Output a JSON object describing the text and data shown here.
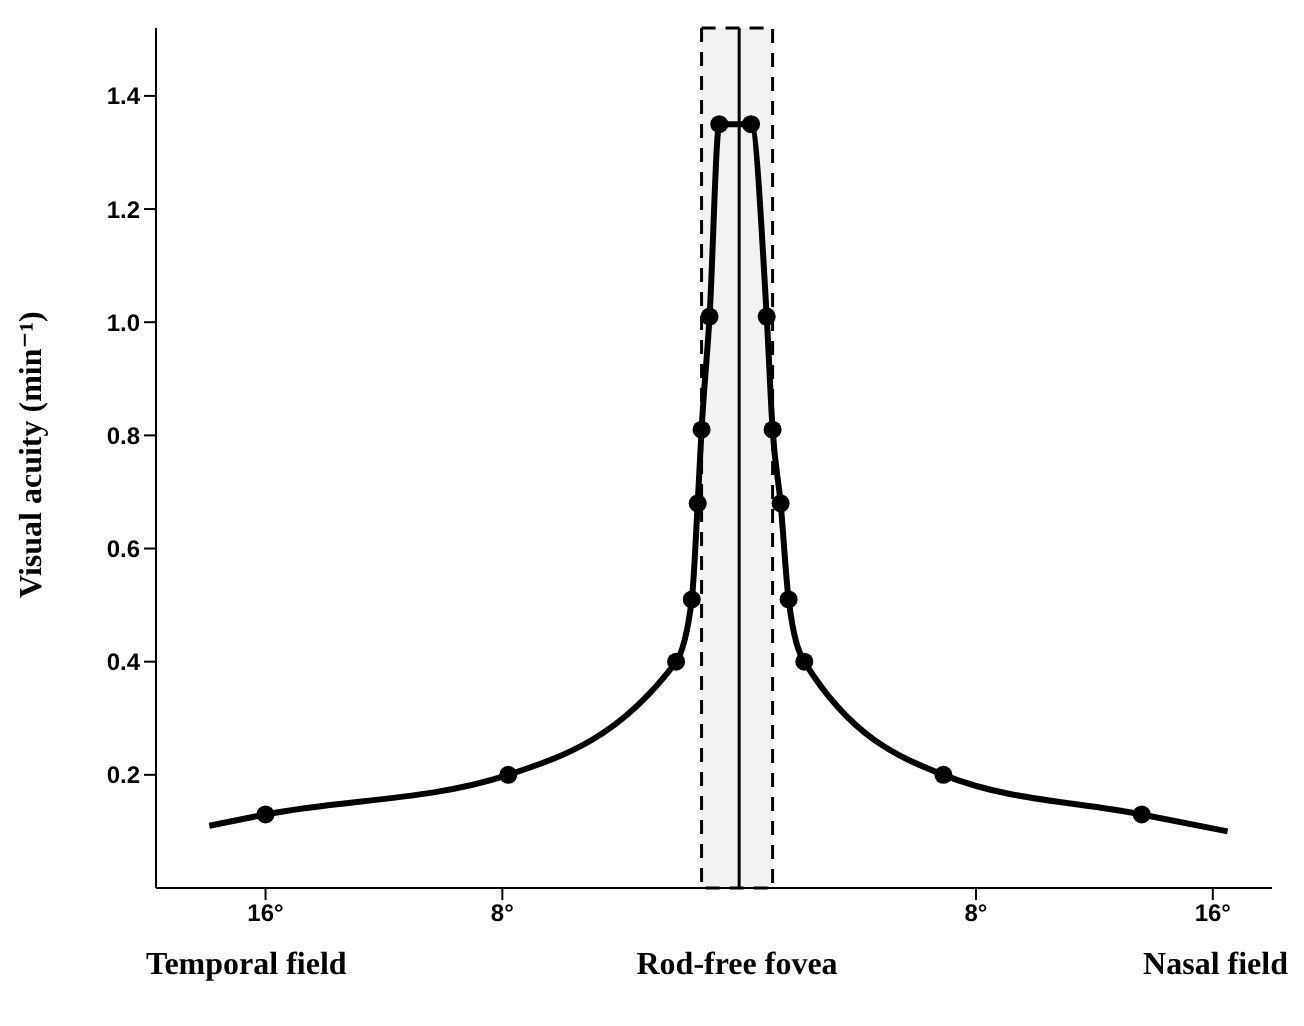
{
  "chart_data": {
    "type": "line",
    "ylabel": "Visual acuity (min⁻¹)",
    "xlim": [
      -19.7,
      18
    ],
    "xticks": [
      {
        "value": -16,
        "label": "16°"
      },
      {
        "value": -8,
        "label": "8°"
      },
      {
        "value": 8,
        "label": "8°"
      },
      {
        "value": 16,
        "label": "16°"
      }
    ],
    "ylim": [
      0,
      1.52
    ],
    "yticks": [
      0.2,
      0.4,
      0.6,
      0.8,
      {
        "value": 1,
        "label": "1.0"
      },
      1.2,
      1.4
    ],
    "series": [
      {
        "marker": "none",
        "line_style": "solid",
        "color": "#000000",
        "x": [
          -17.9,
          -16,
          -7.8,
          -2.13,
          -1.6,
          -1.4,
          -1.27,
          -1.0,
          -0.67,
          0.4,
          0.93,
          1.13,
          1.4,
          1.67,
          2.2,
          6.9,
          13.6,
          16.5
        ],
        "values": [
          0.11,
          0.13,
          0.2,
          0.4,
          0.51,
          0.68,
          0.81,
          1.01,
          1.35,
          1.35,
          1.01,
          0.81,
          0.68,
          0.51,
          0.4,
          0.2,
          0.13,
          0.1
        ]
      },
      {
        "type": "scatter",
        "marker": "circle",
        "color": "#000000",
        "x": [
          -16,
          -7.8,
          -2.13,
          -1.6,
          -1.4,
          -1.27,
          -1.0,
          -0.67,
          0.4,
          0.93,
          1.13,
          1.4,
          1.67,
          2.2,
          6.9,
          13.6
        ],
        "values": [
          0.13,
          0.2,
          0.4,
          0.51,
          0.68,
          0.81,
          1.01,
          1.35,
          1.35,
          1.01,
          0.81,
          0.68,
          0.51,
          0.4,
          0.2,
          0.13
        ]
      }
    ],
    "ref_lines": [
      {
        "axis": "x",
        "value": 0,
        "color": "#000000"
      }
    ],
    "bands": [
      {
        "axis": "x",
        "from": -1.27,
        "to": 1.13,
        "label": "Rod-free fovea",
        "color": "#000000"
      }
    ],
    "annotations": [
      "Temporal field",
      "Nasal field"
    ]
  }
}
